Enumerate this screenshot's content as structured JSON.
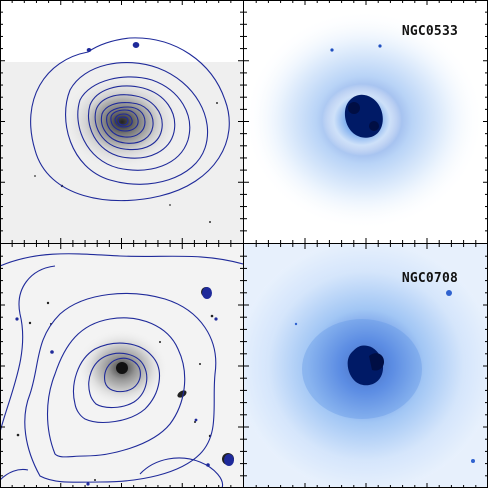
{
  "panels": {
    "top_left": {
      "kind": "optical image with X-ray contours"
    },
    "top_right": {
      "kind": "X-ray image",
      "label": "NGC0533"
    },
    "bottom_left": {
      "kind": "optical image with X-ray contours"
    },
    "bottom_right": {
      "kind": "X-ray image",
      "label": "NGC0708"
    }
  },
  "colors": {
    "contour": "#1f2a9a",
    "xray_core": "#001a66",
    "xray_glow": "#2f6fe0",
    "optical_bg": "#f2f2f2",
    "frame": "#000000"
  }
}
